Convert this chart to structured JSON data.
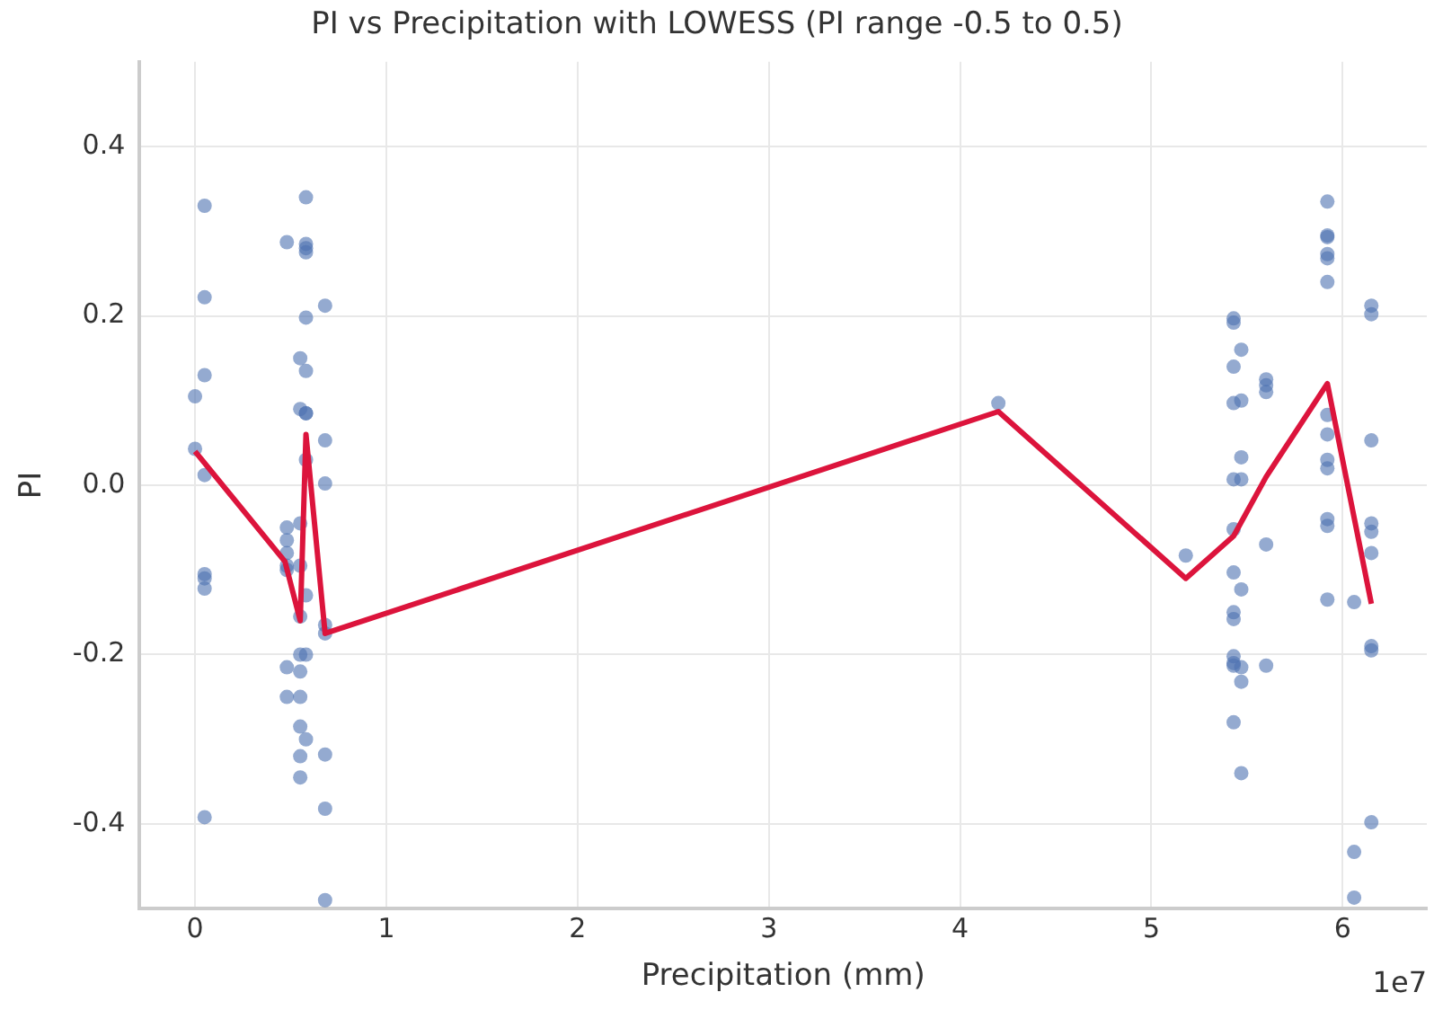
{
  "chart_data": {
    "type": "scatter",
    "title": "PI vs Precipitation with LOWESS (PI range -0.5 to 0.5)",
    "xlabel": "Precipitation (mm)",
    "ylabel": "PI",
    "annotations": [
      "1e7"
    ],
    "xlim": [
      -0.29,
      6.44
    ],
    "ylim": [
      -0.5,
      0.5
    ],
    "xticks": [
      0,
      1,
      2,
      3,
      4,
      5,
      6
    ],
    "yticks": [
      -0.4,
      -0.2,
      {
        "value": 0,
        "label": "0.0"
      },
      0.2,
      0.4
    ],
    "grid": true,
    "marker": "circle",
    "series": [
      {
        "type": "scatter",
        "color": "#4c72b0",
        "x": [
          0,
          0,
          0.05,
          0.05,
          0.05,
          0.05,
          0.05,
          0.05,
          0.05,
          0.05,
          0.48,
          0.48,
          0.48,
          0.48,
          0.48,
          0.48,
          0.48,
          0.48,
          0.55,
          0.55,
          0.55,
          0.55,
          0.55,
          0.55,
          0.55,
          0.55,
          0.55,
          0.55,
          0.55,
          0.58,
          0.58,
          0.58,
          0.58,
          0.58,
          0.58,
          0.58,
          0.58,
          0.58,
          0.58,
          0.58,
          0.58,
          0.68,
          0.68,
          0.68,
          0.68,
          0.68,
          0.68,
          0.68,
          0.68,
          4.2,
          5.18,
          5.43,
          5.43,
          5.43,
          5.43,
          5.43,
          5.43,
          5.43,
          5.43,
          5.43,
          5.43,
          5.43,
          5.43,
          5.43,
          5.47,
          5.47,
          5.47,
          5.47,
          5.47,
          5.47,
          5.47,
          5.47,
          5.6,
          5.6,
          5.6,
          5.6,
          5.6,
          5.92,
          5.92,
          5.92,
          5.92,
          5.92,
          5.92,
          5.92,
          5.92,
          5.92,
          5.92,
          5.92,
          5.92,
          5.92,
          6.06,
          6.06,
          6.06,
          6.15,
          6.15,
          6.15,
          6.15,
          6.15,
          6.15,
          6.15,
          6.15,
          6.15
        ],
        "values": [
          0.105,
          0.043,
          0.33,
          0.222,
          0.13,
          0.012,
          -0.105,
          -0.11,
          -0.122,
          -0.392,
          0.287,
          -0.05,
          -0.065,
          -0.08,
          -0.095,
          -0.1,
          -0.215,
          -0.25,
          0.15,
          0.09,
          -0.045,
          -0.095,
          -0.155,
          -0.2,
          -0.22,
          -0.25,
          -0.285,
          -0.32,
          -0.345,
          0.34,
          0.285,
          0.28,
          0.275,
          0.198,
          0.135,
          0.085,
          0.085,
          0.03,
          -0.13,
          -0.2,
          -0.3,
          0.212,
          0.053,
          0.002,
          -0.165,
          -0.175,
          -0.318,
          -0.382,
          -0.49,
          0.097,
          -0.083,
          0.197,
          0.192,
          0.14,
          0.097,
          0.007,
          -0.052,
          -0.103,
          -0.15,
          -0.158,
          -0.202,
          -0.21,
          -0.213,
          -0.28,
          0.16,
          0.1,
          0.033,
          0.007,
          -0.123,
          -0.215,
          -0.232,
          -0.34,
          0.125,
          0.118,
          0.11,
          -0.07,
          -0.213,
          0.335,
          0.295,
          0.293,
          0.273,
          0.268,
          0.24,
          0.083,
          0.06,
          0.03,
          0.02,
          -0.04,
          -0.048,
          -0.135,
          -0.138,
          -0.433,
          -0.487,
          0.212,
          0.202,
          0.053,
          -0.045,
          -0.055,
          -0.08,
          -0.19,
          -0.195,
          -0.398
        ]
      },
      {
        "type": "line",
        "color": "#dc143c",
        "marker": "none",
        "x": [
          0,
          0.47,
          0.55,
          0.58,
          0.68,
          4.2,
          5.18,
          5.43,
          5.6,
          5.92,
          6.15
        ],
        "values": [
          0.04,
          -0.09,
          -0.16,
          0.06,
          -0.175,
          0.087,
          -0.11,
          -0.06,
          0.01,
          0.12,
          -0.14
        ]
      }
    ]
  }
}
